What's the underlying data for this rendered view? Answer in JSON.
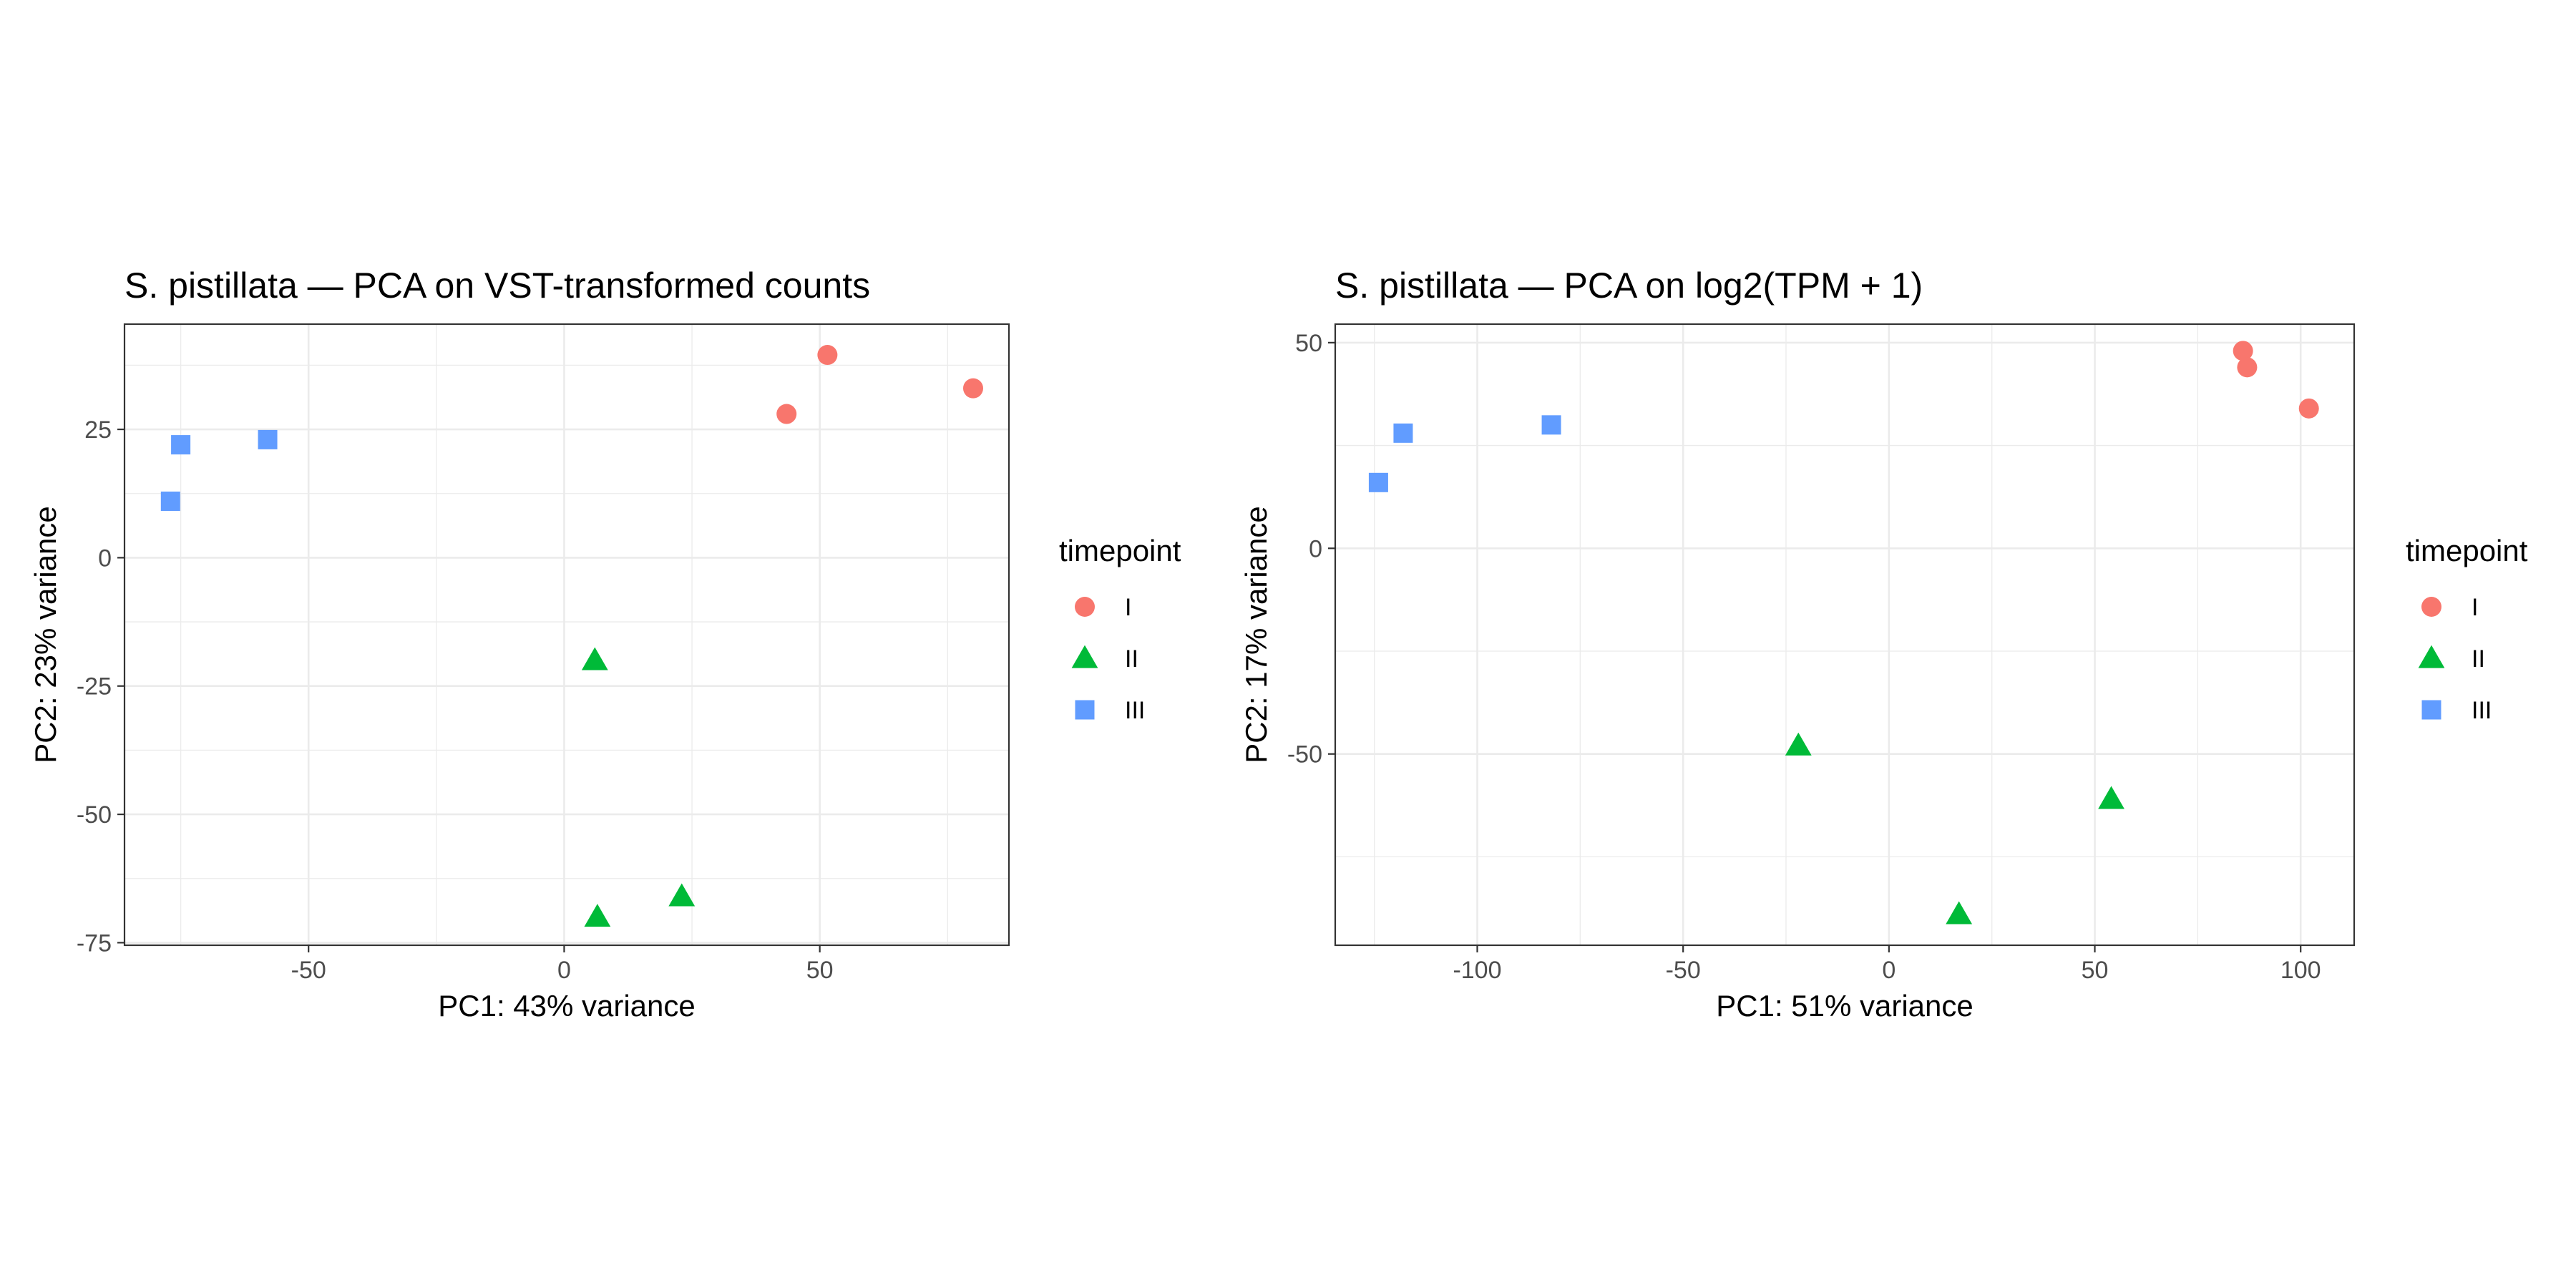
{
  "chart_data": [
    {
      "type": "scatter",
      "title": "S. pistillata — PCA on VST-transformed counts",
      "xlabel": "PC1: 43% variance",
      "ylabel": "PC2: 23% variance",
      "xlim": [
        -86,
        87
      ],
      "ylim": [
        -75.5,
        45.5
      ],
      "x_ticks": [
        -50,
        0,
        50
      ],
      "y_ticks": [
        -75,
        -50,
        -25,
        0,
        25
      ],
      "x_tick_labels": [
        "-50",
        "0",
        "50"
      ],
      "y_tick_labels": [
        "-75",
        "-50",
        "-25",
        "0",
        "25"
      ],
      "grid": true,
      "legend": {
        "title": "timepoint",
        "position": "right"
      },
      "series": [
        {
          "name": "I",
          "color": "#F8766D",
          "shape": "circle",
          "points": [
            [
              43.5,
              28
            ],
            [
              51.5,
              39.5
            ],
            [
              80,
              33
            ]
          ]
        },
        {
          "name": "II",
          "color": "#00BA38",
          "shape": "triangle",
          "points": [
            [
              6,
              -20
            ],
            [
              6.5,
              -70
            ],
            [
              23,
              -66
            ]
          ]
        },
        {
          "name": "III",
          "color": "#619CFF",
          "shape": "square",
          "points": [
            [
              -77,
              11
            ],
            [
              -75,
              22
            ],
            [
              -58,
              23
            ]
          ]
        }
      ]
    },
    {
      "type": "scatter",
      "title": "S. pistillata — PCA on log2(TPM + 1)",
      "xlabel": "PC1: 51% variance",
      "ylabel": "PC2: 17% variance",
      "xlim": [
        -134.5,
        113
      ],
      "ylim": [
        -96.5,
        54.5
      ],
      "x_ticks": [
        -100,
        -50,
        0,
        50,
        100
      ],
      "y_ticks": [
        -50,
        0,
        50
      ],
      "x_tick_labels": [
        "-100",
        "-50",
        "0",
        "50",
        "100"
      ],
      "y_tick_labels": [
        "-50",
        "0",
        "50"
      ],
      "grid": true,
      "legend": {
        "title": "timepoint",
        "position": "right"
      },
      "series": [
        {
          "name": "I",
          "color": "#F8766D",
          "shape": "circle",
          "points": [
            [
              86,
              48
            ],
            [
              87,
              44
            ],
            [
              102,
              34
            ]
          ]
        },
        {
          "name": "II",
          "color": "#00BA38",
          "shape": "triangle",
          "points": [
            [
              -22,
              -48
            ],
            [
              17,
              -89
            ],
            [
              54,
              -61
            ]
          ]
        },
        {
          "name": "III",
          "color": "#619CFF",
          "shape": "square",
          "points": [
            [
              -124,
              16
            ],
            [
              -118,
              28
            ],
            [
              -82,
              30
            ]
          ]
        }
      ]
    }
  ]
}
